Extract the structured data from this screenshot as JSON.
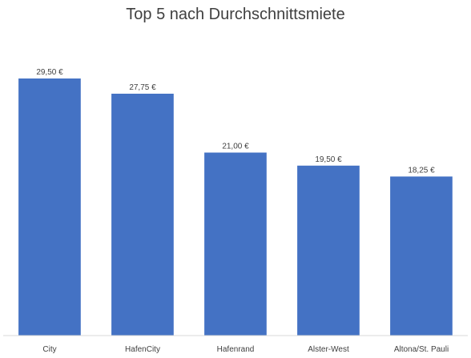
{
  "chart_data": {
    "type": "bar",
    "title": "Top 5 nach Durchschnittsmiete",
    "xlabel": "",
    "ylabel": "",
    "categories": [
      "City",
      "HafenCity",
      "Hafenrand",
      "Alster-West",
      "Altona/St. Pauli"
    ],
    "values": [
      29.5,
      27.75,
      21.0,
      19.5,
      18.25
    ],
    "data_labels": [
      "29,50 €",
      "27,75 €",
      "21,00 €",
      "19,50 €",
      "18,25 €"
    ],
    "ylim": [
      0,
      30
    ],
    "grid": false,
    "legend": "none",
    "colors": {
      "bar": "#4472C4",
      "text": "#404040",
      "axis": "#D9D9D9"
    }
  }
}
